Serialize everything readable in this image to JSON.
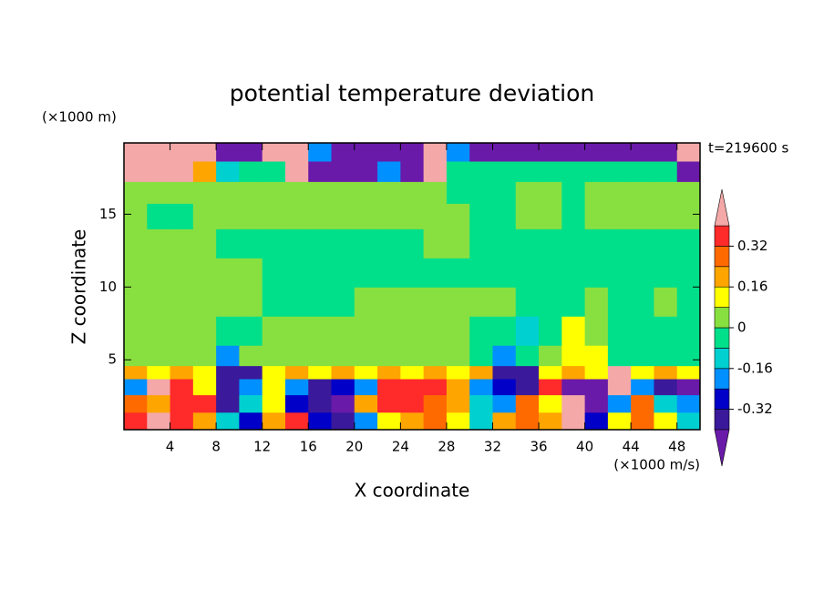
{
  "chart_data": {
    "type": "contour",
    "title": "potential temperature deviation",
    "x_label": "X coordinate",
    "y_label": "Z coordinate",
    "x_unit": "(×1000 m/s)",
    "y_unit": "(×1000 m)",
    "annotation": "t=219600 s",
    "xlim": [
      0,
      50
    ],
    "ylim": [
      0.2,
      19.9
    ],
    "xticks": [
      4,
      8,
      12,
      16,
      20,
      24,
      28,
      32,
      36,
      40,
      44,
      48
    ],
    "yticks": [
      5,
      10,
      15
    ],
    "x": [
      1,
      3,
      5,
      7,
      9,
      11,
      13,
      15,
      17,
      19,
      21,
      23,
      25,
      27,
      29,
      31,
      33,
      35,
      37,
      39,
      41,
      43,
      45,
      47,
      49
    ],
    "y": [
      0.8,
      2,
      3.2,
      4.2,
      5,
      7,
      9,
      11,
      13,
      15,
      16.5,
      18,
      19.3
    ],
    "z": [
      [
        0.36,
        0.45,
        0.36,
        0.2,
        -0.12,
        -0.28,
        0.2,
        0.36,
        -0.28,
        -0.36,
        -0.2,
        0.12,
        0.2,
        0.28,
        0.12,
        -0.12,
        0.2,
        0.28,
        0.2,
        0.45,
        -0.28,
        0.12,
        0.28,
        0.12,
        -0.12
      ],
      [
        0.28,
        0.2,
        0.36,
        0.36,
        -0.36,
        -0.12,
        0.12,
        -0.28,
        -0.36,
        -0.45,
        0.2,
        0.36,
        0.36,
        0.28,
        0.2,
        -0.12,
        -0.2,
        0.28,
        0.12,
        0.45,
        -0.45,
        -0.2,
        0.28,
        -0.12,
        -0.2
      ],
      [
        -0.2,
        0.45,
        0.36,
        0.12,
        -0.36,
        -0.2,
        0.12,
        -0.2,
        -0.36,
        -0.28,
        -0.2,
        0.36,
        0.36,
        0.36,
        0.2,
        -0.2,
        -0.28,
        -0.36,
        0.36,
        -0.45,
        -0.45,
        0.45,
        -0.2,
        -0.36,
        -0.45
      ],
      [
        0.2,
        0.12,
        0.2,
        0.12,
        -0.36,
        -0.36,
        0.12,
        0.2,
        0.12,
        0.2,
        0.12,
        0.2,
        0.12,
        0.2,
        0.12,
        0.2,
        -0.36,
        -0.36,
        0.12,
        0.2,
        0.12,
        0.45,
        0.12,
        0.2,
        0.12
      ],
      [
        0.04,
        0.04,
        0.04,
        0.04,
        -0.2,
        0.04,
        0.04,
        0.04,
        0.04,
        0.04,
        0.04,
        0.04,
        0.04,
        0.04,
        0.04,
        -0.04,
        -0.2,
        -0.04,
        0.04,
        0.12,
        0.12,
        -0.04,
        -0.04,
        -0.04,
        -0.04
      ],
      [
        0.04,
        0.04,
        0.04,
        0.04,
        -0.04,
        -0.04,
        0.04,
        0.04,
        0.04,
        0.04,
        0.04,
        0.04,
        0.04,
        0.04,
        0.04,
        -0.04,
        -0.04,
        -0.12,
        -0.04,
        0.12,
        0.04,
        -0.04,
        -0.04,
        -0.04,
        -0.04
      ],
      [
        0.04,
        0.04,
        0.04,
        0.04,
        0.04,
        0.04,
        -0.04,
        -0.04,
        -0.04,
        -0.04,
        0.04,
        0.04,
        0.04,
        0.04,
        0.04,
        0.04,
        0.04,
        -0.04,
        -0.04,
        -0.04,
        0.04,
        -0.04,
        -0.04,
        0.04,
        -0.04
      ],
      [
        0.04,
        0.04,
        0.04,
        0.04,
        0.04,
        0.04,
        -0.04,
        -0.04,
        -0.04,
        -0.04,
        -0.04,
        -0.04,
        -0.04,
        -0.04,
        -0.04,
        -0.04,
        -0.04,
        -0.04,
        -0.04,
        -0.04,
        -0.04,
        -0.04,
        -0.04,
        -0.04,
        -0.04
      ],
      [
        0.04,
        0.04,
        0.04,
        0.04,
        -0.04,
        -0.04,
        -0.04,
        -0.04,
        -0.04,
        -0.04,
        -0.04,
        -0.04,
        -0.04,
        0.04,
        0.04,
        -0.04,
        -0.04,
        -0.04,
        -0.04,
        -0.04,
        -0.04,
        -0.04,
        -0.04,
        -0.04,
        -0.04
      ],
      [
        0.04,
        -0.04,
        -0.04,
        0.04,
        0.04,
        0.04,
        0.04,
        0.04,
        0.04,
        0.04,
        0.04,
        0.04,
        0.04,
        0.04,
        0.04,
        -0.04,
        -0.04,
        0.04,
        0.04,
        -0.04,
        0.04,
        0.04,
        0.04,
        0.04,
        0.04
      ],
      [
        0.04,
        0.04,
        0.04,
        0.04,
        0.04,
        0.04,
        0.04,
        0.04,
        0.04,
        0.04,
        0.04,
        0.04,
        0.04,
        0.04,
        -0.04,
        -0.04,
        -0.04,
        0.04,
        0.04,
        -0.04,
        0.04,
        0.04,
        0.04,
        0.04,
        0.04
      ],
      [
        0.45,
        0.45,
        0.45,
        0.2,
        -0.12,
        -0.04,
        -0.04,
        0.45,
        -0.45,
        -0.45,
        -0.45,
        -0.2,
        -0.45,
        0.45,
        -0.04,
        -0.04,
        -0.04,
        -0.04,
        -0.04,
        -0.04,
        -0.04,
        -0.04,
        -0.04,
        -0.04,
        -0.45
      ],
      [
        0.45,
        0.45,
        0.45,
        0.45,
        -0.45,
        -0.45,
        0.45,
        0.45,
        -0.2,
        -0.45,
        -0.45,
        -0.45,
        -0.45,
        0.45,
        -0.2,
        -0.45,
        -0.45,
        -0.45,
        -0.45,
        -0.45,
        -0.45,
        -0.45,
        -0.45,
        -0.45,
        0.45
      ]
    ],
    "levels": [
      -0.4,
      -0.32,
      -0.24,
      -0.16,
      -0.08,
      0,
      0.08,
      0.16,
      0.24,
      0.32,
      0.4
    ],
    "colors": [
      "#6a1aa8",
      "#3a1a9a",
      "#0000c8",
      "#0090ff",
      "#00d0d0",
      "#00e08a",
      "#88e040",
      "#ffff00",
      "#ffa500",
      "#ff6a00",
      "#ff2a2a",
      "#f4a8a8"
    ],
    "colorbar_ticks": [
      0.32,
      0.16,
      0,
      -0.16,
      -0.32
    ]
  }
}
